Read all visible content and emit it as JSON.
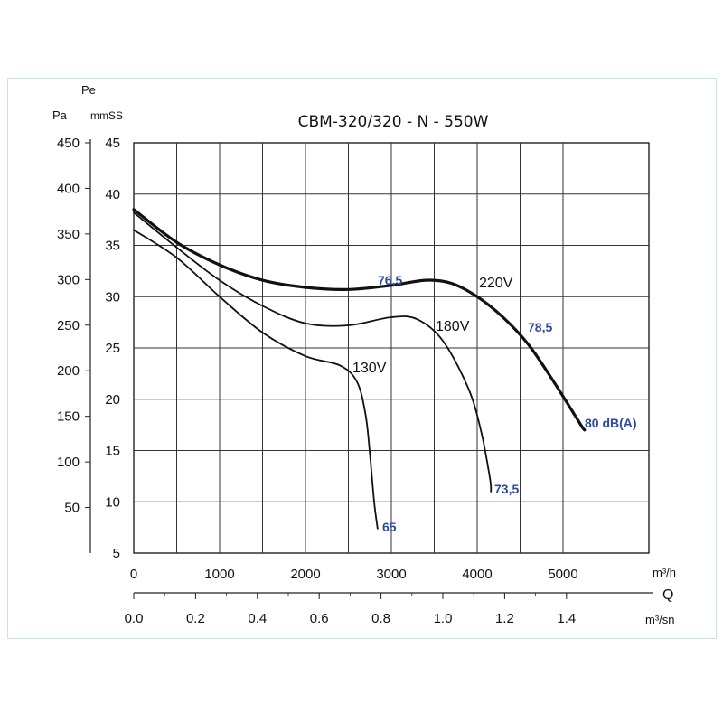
{
  "chart_data": {
    "type": "line",
    "title": "CBM-320/320 - N - 550W",
    "y_label_group": "Pe",
    "y_units": {
      "left": "Pa",
      "right": "mmSS"
    },
    "y_pa_ticks": [
      "450",
      "400",
      "350",
      "300",
      "250",
      "200",
      "150",
      "100",
      "50"
    ],
    "y_mm_ticks": [
      "45",
      "40",
      "35",
      "30",
      "25",
      "20",
      "15",
      "10",
      "5"
    ],
    "x_label": "Q",
    "x_m3h_unit": "m³/h",
    "x_m3s_unit": "m³/sn",
    "x_m3h_ticks": [
      "0",
      "1000",
      "2000",
      "3000",
      "4000",
      "5000"
    ],
    "x_m3s_ticks": [
      "0.0",
      "0.2",
      "0.4",
      "0.6",
      "0.8",
      "1.0",
      "1.2",
      "1.4"
    ],
    "xlim": [
      0,
      6000
    ],
    "ylim_mmSS": [
      5,
      45
    ],
    "series": [
      {
        "name": "220V",
        "x": [
          0,
          500,
          1000,
          1500,
          2000,
          2500,
          3000,
          3400,
          3700,
          4000,
          4300,
          4600,
          4900,
          5200,
          5250
        ],
        "y": [
          38.5,
          35.3,
          33.1,
          31.6,
          30.9,
          30.7,
          31.1,
          31.6,
          31.3,
          30.0,
          28.0,
          25.3,
          21.6,
          17.6,
          17.0
        ]
      },
      {
        "name": "180V",
        "x": [
          0,
          500,
          1000,
          1500,
          2000,
          2500,
          3000,
          3300,
          3600,
          3900,
          4050,
          4150,
          4160
        ],
        "y": [
          38.2,
          34.8,
          31.6,
          29.1,
          27.4,
          27.2,
          28.0,
          27.8,
          25.7,
          21.0,
          16.7,
          12.2,
          11.0
        ]
      },
      {
        "name": "130V",
        "x": [
          0,
          500,
          1000,
          1500,
          2000,
          2400,
          2600,
          2700,
          2750,
          2800,
          2840
        ],
        "y": [
          36.5,
          33.8,
          30.0,
          26.5,
          24.2,
          23.3,
          21.7,
          18.5,
          14.7,
          10.0,
          7.4
        ]
      }
    ],
    "annotations": {
      "voltage_labels": [
        "220V",
        "180V",
        "130V"
      ],
      "noise_labels": [
        "76,5",
        "78,5",
        "80 dB(A)",
        "73,5",
        "65"
      ],
      "noise_color": "#2e4aa3"
    },
    "grid": true
  }
}
